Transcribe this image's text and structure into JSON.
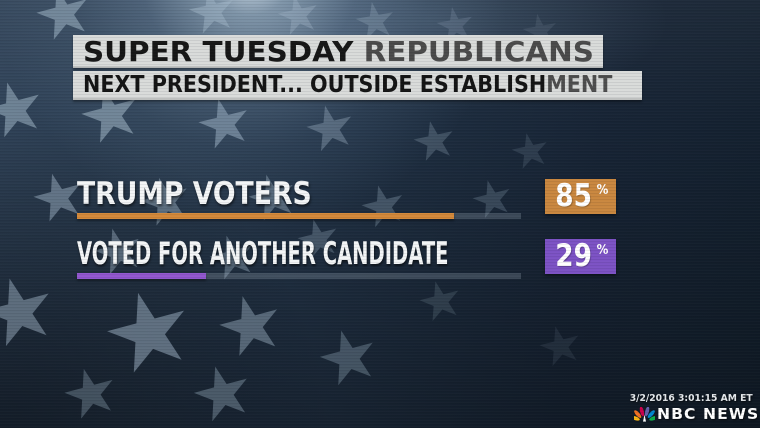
{
  "header": {
    "title_main": "SUPER TUESDAY",
    "title_secondary": "REPUBLICANS",
    "subtitle_main": "NEXT PRESIDENT... OUTSIDE ESTABLISH",
    "subtitle_fade": "MENT"
  },
  "chart_data": {
    "type": "bar",
    "orientation": "horizontal",
    "title": "SUPER TUESDAY REPUBLICANS",
    "subtitle": "NEXT PRESIDENT... OUTSIDE ESTABLISHMENT",
    "categories": [
      "TRUMP VOTERS",
      "VOTED FOR ANOTHER CANDIDATE"
    ],
    "values": [
      85,
      29
    ],
    "unit": "%",
    "xlim": [
      0,
      100
    ],
    "bar_colors": [
      "#d4893a",
      "#9257cf"
    ],
    "value_box_colors": [
      "#c9873f",
      "#7c52c4"
    ],
    "track_color": "rgba(198,210,222,0.22)",
    "legend": "none",
    "grid": false
  },
  "footer": {
    "timestamp": "3/2/2016 3:01:15 AM ET",
    "brand": "NBC NEWS",
    "peacock_colors": [
      "#FCB711",
      "#F37021",
      "#CC004C",
      "#6460AA",
      "#0089D0",
      "#0DB14B"
    ]
  },
  "colors": {
    "header_bar_bg": "#d9dbda",
    "headline_text": "#161616",
    "headline_secondary_text": "#4b4b4b",
    "label_text": "#f3f5f6",
    "background_navy": "#1c2b3d",
    "star_tint": "#aabfd0"
  }
}
